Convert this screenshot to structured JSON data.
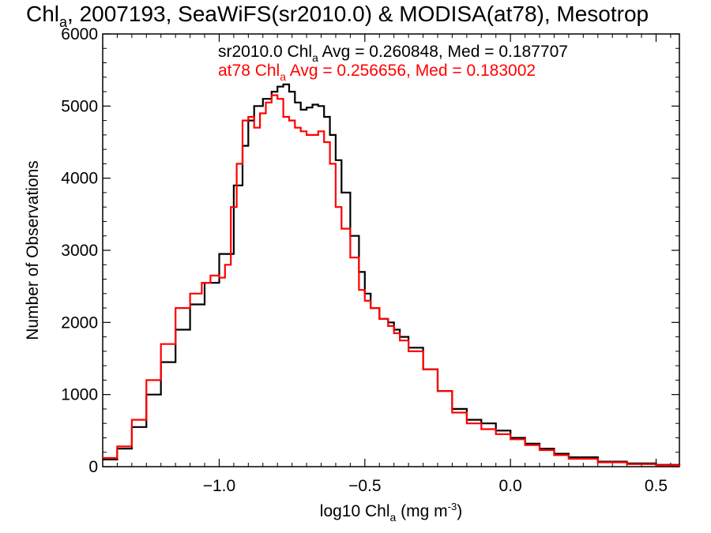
{
  "chart_data": {
    "type": "line",
    "title": {
      "prefix": "Chl",
      "sub": "a",
      "rest": ", 2007193, SeaWiFS(sr2010.0) & MODISA(at78), Mesotrop"
    },
    "xlabel": {
      "prefix": "log10 Chl",
      "sub": "a",
      "rest": " (mg m",
      "sup": "-3",
      "end": ")"
    },
    "ylabel": "Number of Observations",
    "xlim": [
      -1.4,
      0.58
    ],
    "ylim": [
      0,
      6000
    ],
    "xticks": [
      {
        "value": -1.0,
        "label": "−1.0"
      },
      {
        "value": -0.5,
        "label": "−0.5"
      },
      {
        "value": 0.0,
        "label": "0.0"
      },
      {
        "value": 0.5,
        "label": "0.5"
      }
    ],
    "yticks": [
      {
        "value": 0,
        "label": "0"
      },
      {
        "value": 1000,
        "label": "1000"
      },
      {
        "value": 2000,
        "label": "2000"
      },
      {
        "value": 3000,
        "label": "3000"
      },
      {
        "value": 4000,
        "label": "4000"
      },
      {
        "value": 5000,
        "label": "5000"
      },
      {
        "value": 6000,
        "label": "6000"
      }
    ],
    "legend": [
      {
        "prefix": "sr2010.0 Chl",
        "sub": "a",
        "rest": " Avg = 0.260848, Med = 0.187707",
        "color": "#000000"
      },
      {
        "prefix": "at78 Chl",
        "sub": "a",
        "rest": " Avg = 0.256656, Med = 0.183002",
        "color": "#ff0000"
      }
    ],
    "series": [
      {
        "color": "#000000",
        "x": [
          -1.4,
          -1.35,
          -1.3,
          -1.25,
          -1.2,
          -1.15,
          -1.1,
          -1.05,
          -1.0,
          -0.95,
          -0.92,
          -0.9,
          -0.88,
          -0.85,
          -0.82,
          -0.8,
          -0.78,
          -0.76,
          -0.74,
          -0.72,
          -0.7,
          -0.68,
          -0.66,
          -0.64,
          -0.62,
          -0.6,
          -0.58,
          -0.55,
          -0.52,
          -0.5,
          -0.48,
          -0.45,
          -0.42,
          -0.4,
          -0.38,
          -0.35,
          -0.3,
          -0.25,
          -0.2,
          -0.15,
          -0.1,
          -0.05,
          0.0,
          0.05,
          0.1,
          0.15,
          0.2,
          0.3,
          0.4,
          0.5,
          0.58
        ],
        "y": [
          100,
          250,
          550,
          1000,
          1450,
          1900,
          2250,
          2550,
          2950,
          3900,
          4450,
          4800,
          5000,
          5100,
          5200,
          5270,
          5300,
          5200,
          5050,
          4950,
          4980,
          5020,
          5000,
          4850,
          4600,
          4250,
          3800,
          3200,
          2700,
          2400,
          2200,
          2050,
          2000,
          1900,
          1800,
          1650,
          1350,
          1050,
          800,
          650,
          600,
          500,
          400,
          320,
          250,
          180,
          130,
          70,
          45,
          25,
          10
        ]
      },
      {
        "color": "#ff0000",
        "x": [
          -1.4,
          -1.35,
          -1.3,
          -1.25,
          -1.2,
          -1.15,
          -1.1,
          -1.06,
          -1.03,
          -1.0,
          -0.98,
          -0.96,
          -0.94,
          -0.92,
          -0.9,
          -0.88,
          -0.86,
          -0.84,
          -0.82,
          -0.8,
          -0.78,
          -0.76,
          -0.74,
          -0.72,
          -0.7,
          -0.68,
          -0.66,
          -0.64,
          -0.62,
          -0.6,
          -0.58,
          -0.55,
          -0.52,
          -0.5,
          -0.48,
          -0.45,
          -0.42,
          -0.4,
          -0.38,
          -0.35,
          -0.3,
          -0.25,
          -0.2,
          -0.15,
          -0.1,
          -0.05,
          0.0,
          0.05,
          0.1,
          0.15,
          0.2,
          0.3,
          0.4,
          0.5,
          0.58
        ],
        "y": [
          120,
          280,
          650,
          1200,
          1700,
          2200,
          2400,
          2550,
          2650,
          2620,
          2800,
          3600,
          4200,
          4800,
          4850,
          4700,
          4900,
          5050,
          5150,
          5100,
          4850,
          4800,
          4700,
          4650,
          4600,
          4600,
          4650,
          4500,
          4200,
          3600,
          3300,
          2900,
          2450,
          2300,
          2200,
          2050,
          1950,
          1850,
          1750,
          1600,
          1350,
          1050,
          750,
          600,
          520,
          450,
          380,
          300,
          230,
          160,
          110,
          60,
          35,
          18,
          8
        ]
      }
    ]
  }
}
